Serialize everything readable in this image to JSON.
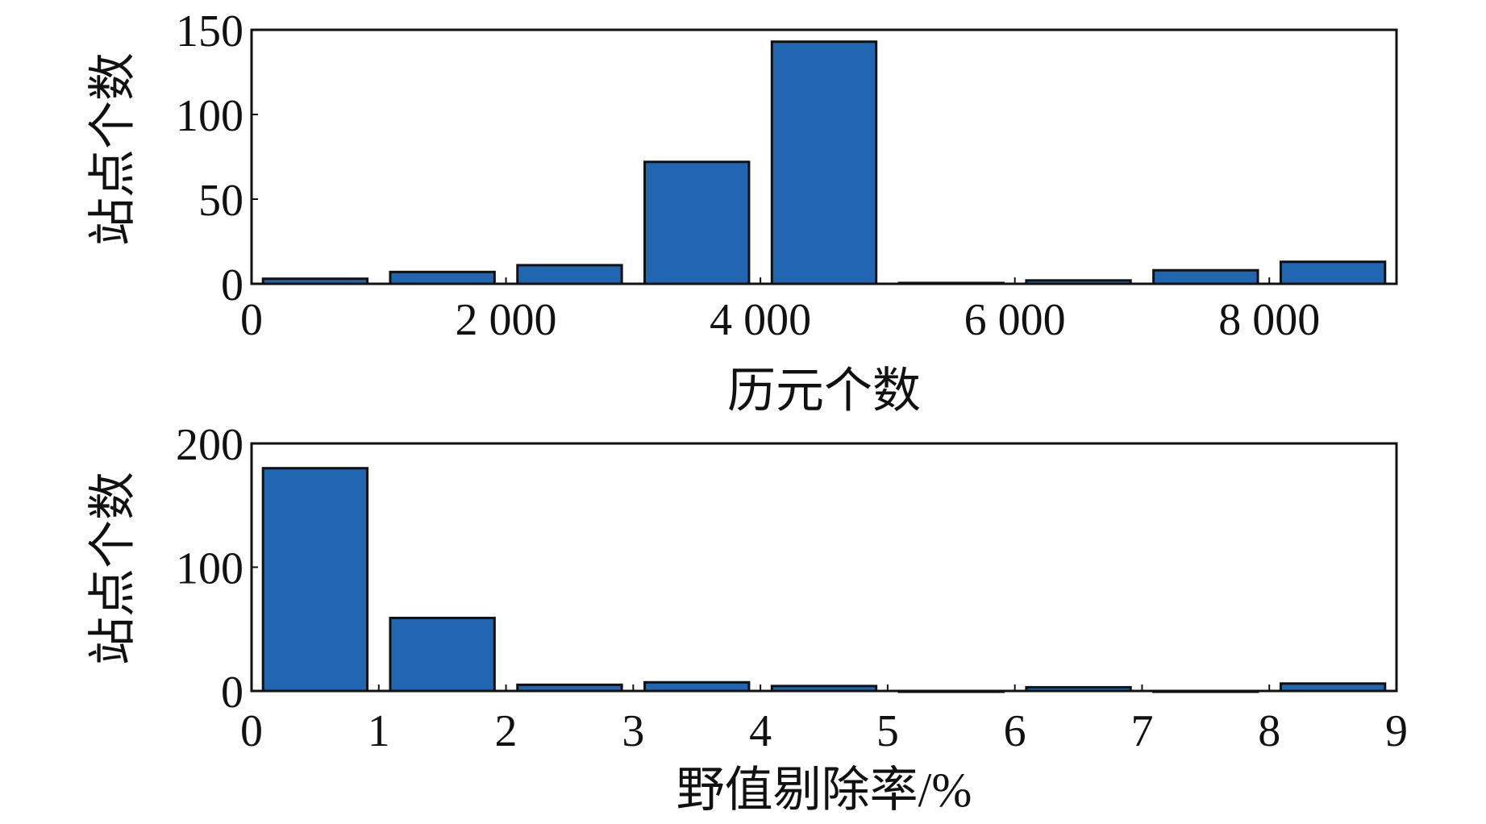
{
  "chart_data": [
    {
      "type": "bar",
      "xlabel": "历元个数",
      "ylabel": "站点个数",
      "xlim": [
        0,
        9000
      ],
      "ylim": [
        0,
        150
      ],
      "xticks": [
        0,
        2000,
        4000,
        6000,
        8000
      ],
      "xtick_labels": [
        "0",
        "2 000",
        "4 000",
        "6 000",
        "8 000"
      ],
      "yticks": [
        0,
        50,
        100,
        150
      ],
      "ytick_labels": [
        "0",
        "50",
        "100",
        "150"
      ],
      "bin_width": 1000,
      "bins": [
        {
          "x": 500,
          "value": 3
        },
        {
          "x": 1500,
          "value": 7
        },
        {
          "x": 2500,
          "value": 11
        },
        {
          "x": 3500,
          "value": 72
        },
        {
          "x": 4500,
          "value": 143
        },
        {
          "x": 5500,
          "value": 0.5
        },
        {
          "x": 6500,
          "value": 2
        },
        {
          "x": 7500,
          "value": 8
        },
        {
          "x": 8500,
          "value": 13
        }
      ],
      "bar_color": "#2166b0",
      "grid": false,
      "legend": false
    },
    {
      "type": "bar",
      "xlabel": "野值剔除率/%",
      "ylabel": "站点个数",
      "xlim": [
        0,
        9
      ],
      "ylim": [
        0,
        200
      ],
      "xticks": [
        0,
        1,
        2,
        3,
        4,
        5,
        6,
        7,
        8,
        9
      ],
      "xtick_labels": [
        "0",
        "1",
        "2",
        "3",
        "4",
        "5",
        "6",
        "7",
        "8",
        "9"
      ],
      "yticks": [
        0,
        100,
        200
      ],
      "ytick_labels": [
        "0",
        "100",
        "200"
      ],
      "bin_width": 1,
      "bins": [
        {
          "x": 0.5,
          "value": 180
        },
        {
          "x": 1.5,
          "value": 59
        },
        {
          "x": 2.5,
          "value": 5
        },
        {
          "x": 3.5,
          "value": 7
        },
        {
          "x": 4.5,
          "value": 4
        },
        {
          "x": 5.5,
          "value": 0
        },
        {
          "x": 6.5,
          "value": 3
        },
        {
          "x": 7.5,
          "value": 0
        },
        {
          "x": 8.5,
          "value": 6
        }
      ],
      "bar_color": "#2166b0",
      "grid": false,
      "legend": false
    }
  ]
}
